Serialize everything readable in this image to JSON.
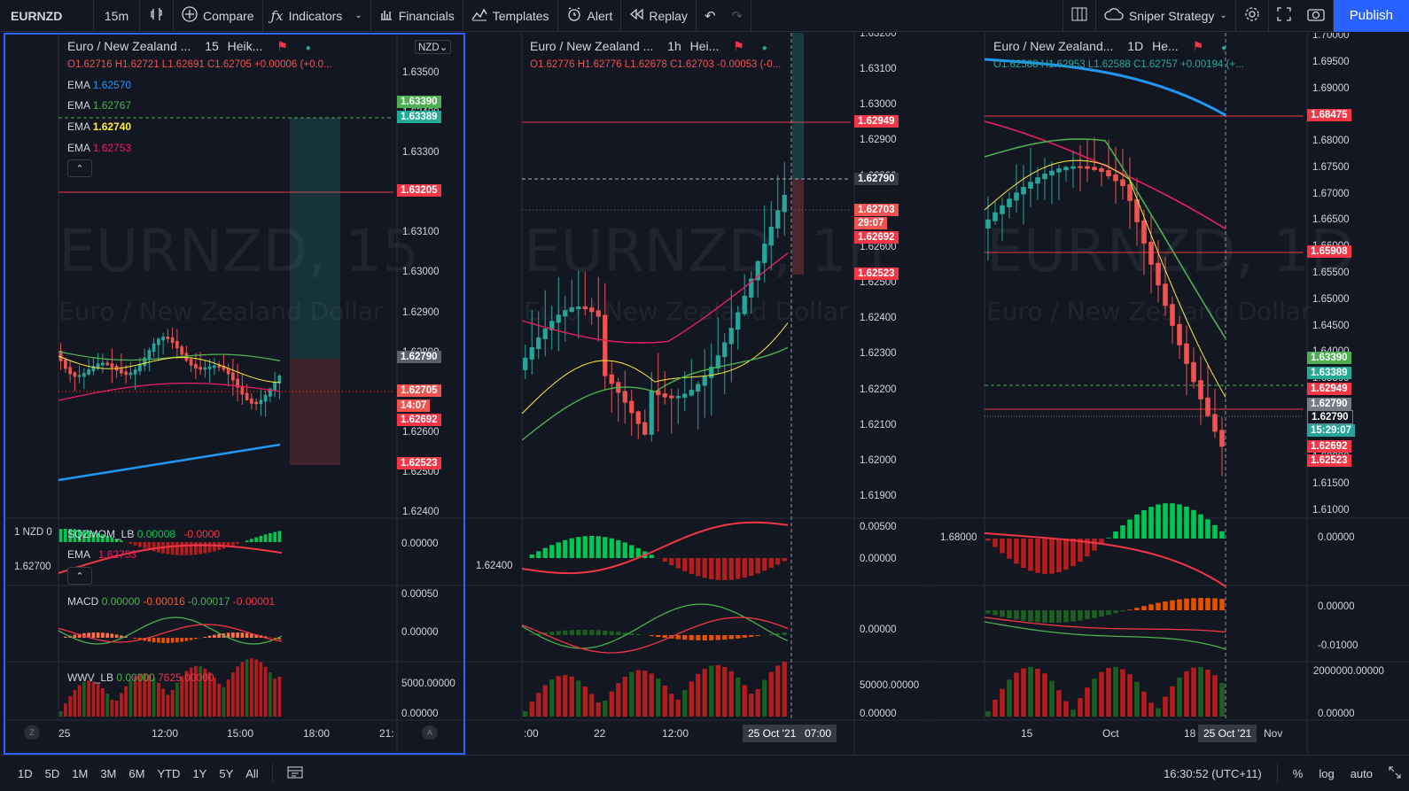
{
  "toolbar": {
    "symbol": "EURNZD",
    "interval": "15m",
    "compare": "Compare",
    "indicators": "Indicators",
    "financials": "Financials",
    "templates": "Templates",
    "alert": "Alert",
    "replay": "Replay",
    "layout": "Sniper Strategy",
    "publish": "Publish"
  },
  "bottombar": {
    "ranges": [
      "1D",
      "5D",
      "1M",
      "3M",
      "6M",
      "YTD",
      "1Y",
      "5Y",
      "All"
    ],
    "time": "16:30:52 (UTC+11)",
    "percent": "%",
    "log": "log",
    "auto": "auto"
  },
  "panes": [
    {
      "title": "Euro / New Zealand ...",
      "interval": "15",
      "style": "Heik...",
      "currency": "NZD",
      "ohlc": {
        "o": "O1.62716",
        "h": "H1.62721",
        "l": "L1.62691",
        "c": "C1.62705",
        "chg": "+0.00006 (+0.0..."
      },
      "emas": [
        {
          "label": "EMA",
          "value": "1.62570",
          "color": "#2196f3"
        },
        {
          "label": "EMA",
          "value": "1.62767",
          "color": "#4caf50"
        },
        {
          "label": "EMA",
          "value": "1.62740",
          "color": "#ffeb3b"
        },
        {
          "label": "EMA",
          "value": "1.62753",
          "color": "#e91e63"
        }
      ],
      "watermark": "EURNZD, 15",
      "watermark_sub": "Euro / New Zealand Dollar",
      "price_axis": [
        "1.63500",
        "1.63400",
        "1.63300",
        "1.63200",
        "1.63100",
        "1.63000",
        "1.62900",
        "1.62800",
        "1.62700",
        "1.62600",
        "1.62500",
        "1.62400"
      ],
      "tags": [
        {
          "text": "1.63390",
          "color": "#4caf50"
        },
        {
          "text": "1.63389",
          "color": "#22ab94"
        },
        {
          "text": "1.63205",
          "color": "#f23645"
        },
        {
          "text": "1.62790",
          "color": "#5d606b"
        },
        {
          "text": "1.62705",
          "color": "#ef5350"
        },
        {
          "text": "14:07",
          "color": "#ef5350"
        },
        {
          "text": "1.62692",
          "color": "#f23645"
        },
        {
          "text": "1.62523",
          "color": "#f23645"
        }
      ],
      "sqzmom": {
        "label": "SQZMOM_LB",
        "v1": "0.00008",
        "v2": "-0.0000",
        "axis": "0.00000"
      },
      "ema2": {
        "label": "EMA",
        "value": "1.62753",
        "left_label": "1 NZD 0",
        "left_value": "1.62700"
      },
      "macd": {
        "label": "MACD",
        "v1": "0.00000",
        "v2": "-0.00016",
        "v3": "-0.00017",
        "v4": "-0.00001",
        "axis_top": "0.00050",
        "axis_mid": "0.00000"
      },
      "wwv": {
        "label": "WWV_LB",
        "v1": "0.00000",
        "v2": "7625.00000",
        "axis_top": "5000.00000",
        "axis_bottom": "0.00000"
      },
      "time_axis": [
        "25",
        "12:00",
        "15:00",
        "18:00",
        "21:"
      ],
      "mini_left": "Z",
      "mini_right": "A"
    },
    {
      "title": "Euro / New Zealand ...",
      "interval": "1h",
      "style": "Hei...",
      "ohlc": {
        "o": "O1.62776",
        "h": "H1.62776",
        "l": "L1.62678",
        "c": "C1.62703",
        "chg": "-0.00053 (-0..."
      },
      "watermark": "EURNZD, 1h",
      "watermark_sub": "Euro / New Zealand Dollar",
      "price_axis": [
        "1.63200",
        "1.63100",
        "1.63000",
        "1.62900",
        "1.62800",
        "1.62700",
        "1.62600",
        "1.62500",
        "1.62400",
        "1.62300",
        "1.62200",
        "1.62100",
        "1.62000",
        "1.61900"
      ],
      "tags": [
        {
          "text": "1.62949",
          "color": "#f23645"
        },
        {
          "text": "1.62790",
          "color": "#363a45"
        },
        {
          "text": "1.62703",
          "color": "#ef5350"
        },
        {
          "text": "29:07",
          "color": "#ef5350"
        },
        {
          "text": "1.62692",
          "color": "#f23645"
        },
        {
          "text": "1.62523",
          "color": "#f23645"
        }
      ],
      "sqz_axis_top": "0.00500",
      "sqz_axis_mid": "0.00000",
      "left_value": "1.62400",
      "macd_axis": "0.00000",
      "wwv_axis_top": "50000.00000",
      "wwv_axis_bottom": "0.00000",
      "time_axis": [
        ":00",
        "22",
        "12:00"
      ],
      "date_tag": "25 Oct '21",
      "time_tag": "07:00"
    },
    {
      "title": "Euro / New Zealand...",
      "interval": "1D",
      "style": "He...",
      "ohlc": {
        "o": "O1.62588",
        "h": "H1.62953",
        "l": "L1.62588",
        "c": "C1.62757",
        "chg": "+0.00194 (+..."
      },
      "watermark": "EURNZD, 1D",
      "watermark_sub": "Euro / New Zealand Dollar",
      "price_axis": [
        "1.70000",
        "1.69500",
        "1.69000",
        "1.68500",
        "1.68000",
        "1.67500",
        "1.67000",
        "1.66500",
        "1.66000",
        "1.65500",
        "1.65000",
        "1.64500",
        "1.64000",
        "1.63500",
        "1.63000",
        "1.62500",
        "1.62000",
        "1.61500",
        "1.61000"
      ],
      "tags": [
        {
          "text": "1.68475",
          "color": "#f23645"
        },
        {
          "text": "1.65908",
          "color": "#f23645"
        },
        {
          "text": "1.63390",
          "color": "#4caf50"
        },
        {
          "text": "1.63389",
          "color": "#22ab94"
        },
        {
          "text": "1.62949",
          "color": "#f23645"
        },
        {
          "text": "1.62790",
          "color": "#787b86"
        },
        {
          "text": "1.62790",
          "color": "#131722"
        },
        {
          "text": "15:29:07",
          "color": "#26a69a"
        },
        {
          "text": "1.62692",
          "color": "#f23645"
        },
        {
          "text": "1.62523",
          "color": "#f23645"
        }
      ],
      "sqz_axis": "0.00000",
      "left_value": "1.68000",
      "macd_axis_top": "0.00000",
      "macd_axis_bottom": "-0.01000",
      "wwv_axis_top": "2000000.00000",
      "wwv_axis_bottom": "0.00000",
      "time_axis": [
        "15",
        "Oct",
        "18",
        "Nov"
      ],
      "date_tag": "25 Oct '21"
    }
  ],
  "colors": {
    "up": "#26a69a",
    "down": "#ef5350",
    "bg": "#131722",
    "grid": "#2a2e39",
    "accent": "#2962ff"
  }
}
